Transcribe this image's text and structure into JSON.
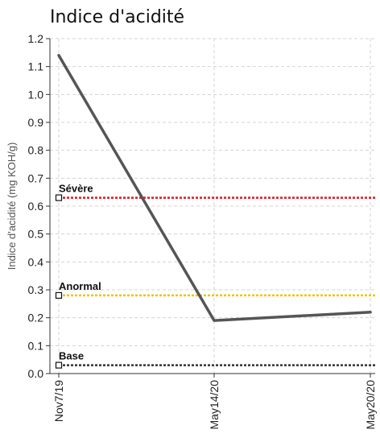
{
  "chart_data": {
    "type": "line",
    "title": "Indice d'acidité",
    "xlabel": "",
    "ylabel": "Indice d'acidité (mg KOH/g)",
    "categories": [
      "Nov7/19",
      "May14/20",
      "May20/20"
    ],
    "series": [
      {
        "values": [
          1.14,
          0.19,
          0.22
        ],
        "color": "#555555"
      }
    ],
    "thresholds": [
      {
        "name": "Sévère",
        "value": 0.63,
        "color": "#e8141e"
      },
      {
        "name": "Anormal",
        "value": 0.28,
        "color": "#f5c000"
      },
      {
        "name": "Base",
        "value": 0.03,
        "color": "#333333"
      }
    ],
    "ylim": [
      0,
      1.2
    ],
    "yticks": [
      "0.0",
      "0.1",
      "0.2",
      "0.3",
      "0.4",
      "0.5",
      "0.6",
      "0.7",
      "0.8",
      "0.9",
      "1.0",
      "1.1",
      "1.2"
    ],
    "grid": true,
    "legend": "none"
  }
}
